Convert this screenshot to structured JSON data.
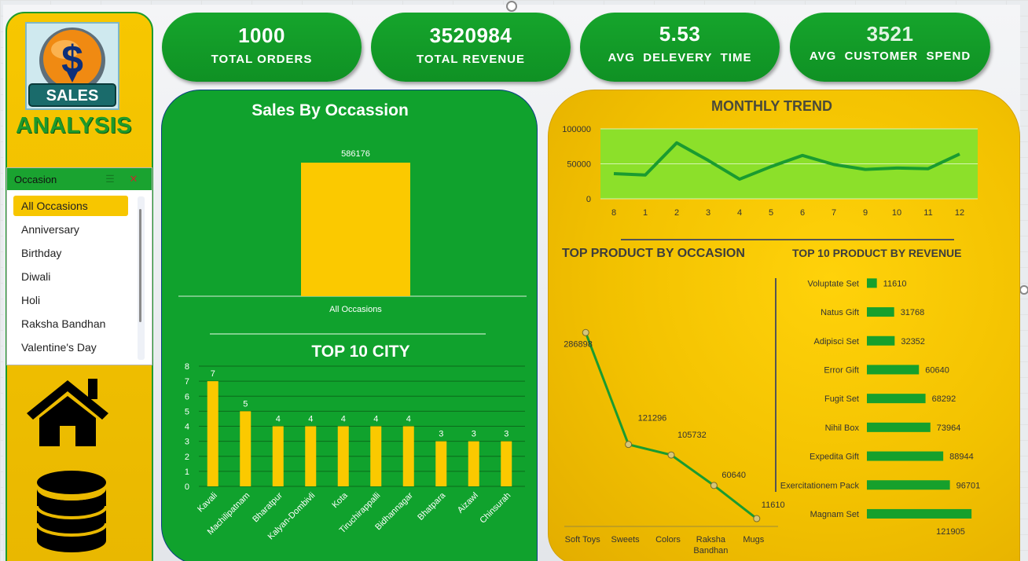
{
  "brand": {
    "logo_text": "SALES",
    "title": "ANALYSIS"
  },
  "slicer": {
    "title": "Occasion",
    "items": [
      {
        "label": "All Occasions",
        "selected": true
      },
      {
        "label": "Anniversary",
        "selected": false
      },
      {
        "label": "Birthday",
        "selected": false
      },
      {
        "label": "Diwali",
        "selected": false
      },
      {
        "label": "Holi",
        "selected": false
      },
      {
        "label": "Raksha Bandhan",
        "selected": false
      },
      {
        "label": "Valentine's Day",
        "selected": false
      }
    ],
    "multi_select_icon": "multi-select-icon",
    "clear_filter_icon": "clear-filter-icon"
  },
  "nav_icons": [
    "home-icon",
    "database-icon"
  ],
  "kpis": [
    {
      "value": "1000",
      "label": "TOTAL ORDERS"
    },
    {
      "value": "3520984",
      "label": "TOTAL REVENUE"
    },
    {
      "value": "5.53",
      "label": "AVG  DELEVERY  TIME"
    },
    {
      "value": "3521",
      "label": "AVG  CUSTOMER  SPEND"
    }
  ],
  "colors": {
    "green": "#10a22d",
    "gold": "#f7c700",
    "bar_yellow": "#fbc900",
    "trend_bg": "#8ce02a",
    "trend_line": "#1a9b30"
  },
  "chart_data": [
    {
      "id": "sales-by-occasion",
      "type": "bar",
      "title": "Sales By Occassion",
      "categories": [
        "All Occasions"
      ],
      "values": [
        586176
      ],
      "ylim": [
        0,
        700000
      ]
    },
    {
      "id": "top-10-city",
      "type": "bar",
      "title": "TOP 10 CITY",
      "categories": [
        "Kavali",
        "Machilipatnam",
        "Bharatpur",
        "Kalyan-Dombivli",
        "Kota",
        "Tiruchirappalli",
        "Bidhannagar",
        "Bhatpara",
        "Aizawl",
        "Chinsurah"
      ],
      "values": [
        7,
        5,
        4,
        4,
        4,
        4,
        4,
        3,
        3,
        3
      ],
      "yticks": [
        "0",
        "1",
        "2",
        "3",
        "4",
        "5",
        "6",
        "7",
        "8"
      ],
      "ylim": [
        0,
        8
      ]
    },
    {
      "id": "monthly-trend",
      "type": "line",
      "title": "MONTHLY TREND",
      "x": [
        "8",
        "1",
        "2",
        "3",
        "4",
        "5",
        "6",
        "7",
        "9",
        "10",
        "11",
        "12"
      ],
      "values": [
        36000,
        34000,
        80000,
        55000,
        28000,
        46000,
        62000,
        49000,
        42000,
        44000,
        43000,
        64000
      ],
      "yticks": [
        "0",
        "50000",
        "100000"
      ],
      "ylim": [
        0,
        100000
      ]
    },
    {
      "id": "top-product-by-occasion",
      "type": "line",
      "title": "TOP PRODUCT BY OCCASION",
      "x": [
        "Soft Toys",
        "Sweets",
        "Colors",
        "Raksha Bandhan",
        "Mugs"
      ],
      "x_lines": [
        [
          "Soft Toys"
        ],
        [
          "Sweets"
        ],
        [
          "Colors"
        ],
        [
          "Raksha",
          "Bandhan"
        ],
        [
          "Mugs"
        ]
      ],
      "values": [
        286898,
        121296,
        105732,
        60640,
        11610
      ],
      "labels": [
        "286898",
        "121296",
        "105732",
        "60640",
        "11610"
      ],
      "ylim": [
        0,
        300000
      ]
    },
    {
      "id": "top-10-product-by-revenue",
      "type": "bar",
      "orientation": "horizontal",
      "title": "TOP 10 PRODUCT BY REVENUE",
      "categories": [
        "Voluptate Set",
        "Natus Gift",
        "Adipisci Set",
        "Error Gift",
        "Fugit Set",
        "Nihil Box",
        "Expedita Gift",
        "Exercitationem Pack",
        "Magnam Set"
      ],
      "values": [
        11610,
        31768,
        32352,
        60640,
        68292,
        73964,
        88944,
        96701,
        121905
      ],
      "labels": [
        "11610",
        "31768",
        "32352",
        "60640",
        "68292",
        "73964",
        "88944",
        "96701",
        "121905"
      ],
      "xlim": [
        0,
        130000
      ]
    }
  ]
}
